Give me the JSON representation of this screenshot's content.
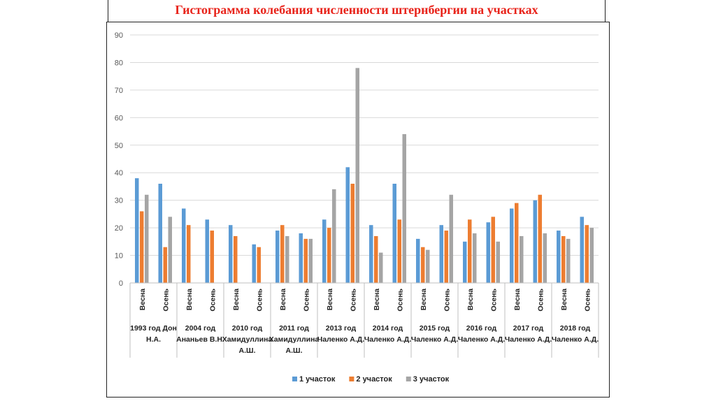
{
  "chart_data": {
    "type": "bar",
    "title": "Гистограмма колебания численности штернбергии на участках",
    "xlabel": "",
    "ylabel": "",
    "ylim": [
      0,
      90
    ],
    "yticks": [
      0,
      10,
      20,
      30,
      40,
      50,
      60,
      70,
      80,
      90
    ],
    "grid": true,
    "legend_position": "bottom",
    "colors": [
      "#5b9bd5",
      "#ed7d31",
      "#a5a5a5"
    ],
    "groups": [
      {
        "label": [
          "1993 год Дон",
          "Н.А."
        ],
        "seasons": [
          "Весна",
          "Осень"
        ]
      },
      {
        "label": [
          "2004 год",
          "Ананьев В.Н."
        ],
        "seasons": [
          "Весна",
          "Осень"
        ]
      },
      {
        "label": [
          "2010 год",
          "Хамидуллина",
          "А.Ш."
        ],
        "seasons": [
          "Весна",
          "Осень"
        ]
      },
      {
        "label": [
          "2011 год",
          "Хамидуллина",
          "А.Ш."
        ],
        "seasons": [
          "Весна",
          "Осень"
        ]
      },
      {
        "label": [
          "2013 год",
          "Чаленко А.Д."
        ],
        "seasons": [
          "Весна",
          "Осень"
        ]
      },
      {
        "label": [
          "2014 год",
          "Чаленко А.Д."
        ],
        "seasons": [
          "Весна",
          "Осень"
        ]
      },
      {
        "label": [
          "2015 год",
          "Чаленко А.Д."
        ],
        "seasons": [
          "Весна",
          "Осень"
        ]
      },
      {
        "label": [
          "2016 год",
          "Чаленко А.Д."
        ],
        "seasons": [
          "Весна",
          "Осень"
        ]
      },
      {
        "label": [
          "2017 год",
          "Чаленко А.Д."
        ],
        "seasons": [
          "Весна",
          "Осень"
        ]
      },
      {
        "label": [
          "2018 год",
          "Чаленко А.Д."
        ],
        "seasons": [
          "Весна",
          "Осень"
        ]
      }
    ],
    "series": [
      {
        "name": "1 участок",
        "values": [
          38,
          36,
          27,
          23,
          21,
          14,
          19,
          18,
          23,
          42,
          21,
          36,
          16,
          21,
          15,
          22,
          27,
          30,
          19,
          24
        ]
      },
      {
        "name": "2 участок",
        "values": [
          26,
          13,
          21,
          19,
          17,
          13,
          21,
          16,
          20,
          36,
          17,
          23,
          13,
          19,
          23,
          24,
          29,
          32,
          17,
          21
        ]
      },
      {
        "name": "3 участок",
        "values": [
          32,
          24,
          null,
          null,
          null,
          null,
          17,
          16,
          34,
          78,
          11,
          54,
          12,
          32,
          18,
          15,
          17,
          18,
          16,
          20
        ]
      }
    ]
  }
}
